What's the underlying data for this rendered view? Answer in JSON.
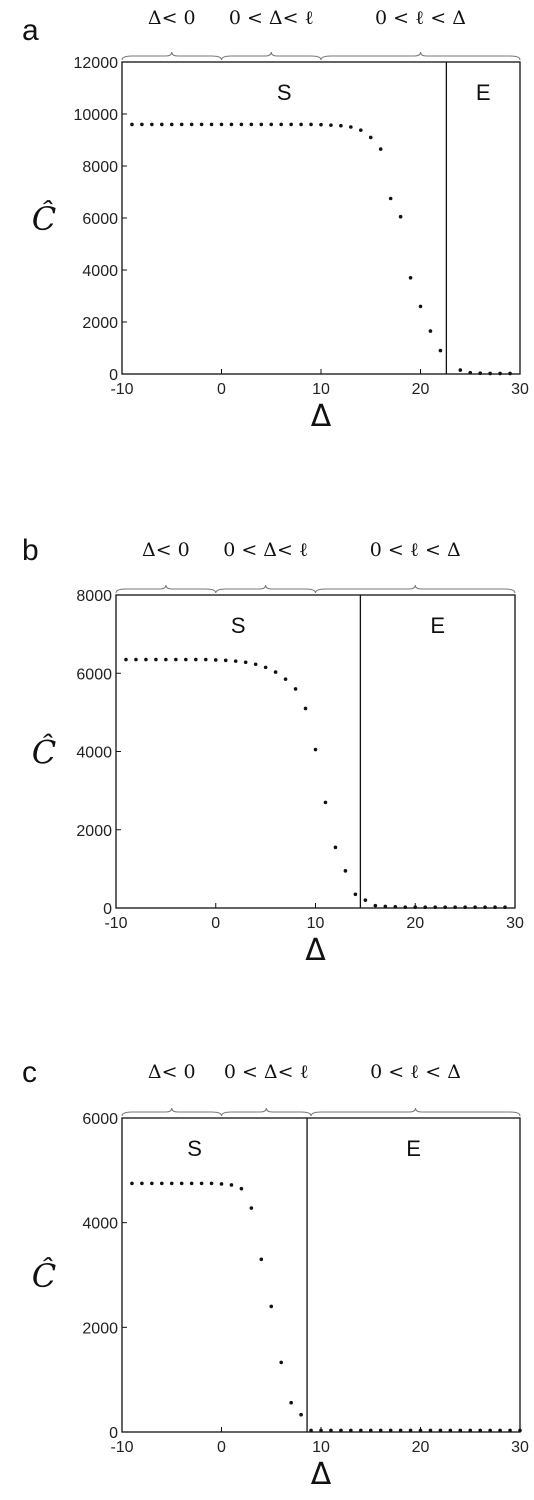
{
  "chart_data": [
    {
      "type": "scatter",
      "panel_label": "a",
      "xlabel": "Δ",
      "ylabel": "Ĉ",
      "xlim": [
        -10,
        30
      ],
      "ylim": [
        0,
        12000
      ],
      "xticks": [
        "-10",
        "0",
        "10",
        "20",
        "30"
      ],
      "yticks": [
        "0",
        "2000",
        "4000",
        "6000",
        "8000",
        "10000",
        "12000"
      ],
      "regime_labels": [
        "Δ< 0",
        "0 < Δ< ℓ",
        "0 < ℓ < Δ"
      ],
      "regime_bounds": [
        -10,
        0,
        10,
        30
      ],
      "regions": [
        "S",
        "E"
      ],
      "boundary_x": 22.6,
      "x": [
        -9,
        -8,
        -7,
        -6,
        -5,
        -4,
        -3,
        -2,
        -1,
        0,
        1,
        2,
        3,
        4,
        5,
        6,
        7,
        8,
        9,
        10,
        11,
        12,
        13,
        14,
        15,
        16,
        17,
        18,
        19,
        20,
        21,
        22,
        24,
        25,
        26,
        27,
        28,
        29
      ],
      "y": [
        9600,
        9600,
        9600,
        9600,
        9600,
        9600,
        9600,
        9600,
        9600,
        9600,
        9600,
        9600,
        9600,
        9600,
        9600,
        9600,
        9600,
        9600,
        9600,
        9590,
        9570,
        9550,
        9500,
        9380,
        9100,
        8650,
        6750,
        6050,
        3700,
        2600,
        1650,
        900,
        150,
        50,
        30,
        20,
        20,
        20
      ]
    },
    {
      "type": "scatter",
      "panel_label": "b",
      "xlabel": "Δ",
      "ylabel": "Ĉ",
      "xlim": [
        -10,
        30
      ],
      "ylim": [
        0,
        8000
      ],
      "xticks": [
        "-10",
        "0",
        "10",
        "20",
        "30"
      ],
      "yticks": [
        "0",
        "2000",
        "4000",
        "6000",
        "8000"
      ],
      "regime_labels": [
        "Δ< 0",
        "0 < Δ< ℓ",
        "0 < ℓ < Δ"
      ],
      "regime_bounds": [
        -10,
        0,
        10,
        30
      ],
      "regions": [
        "S",
        "E"
      ],
      "boundary_x": 14.5,
      "x": [
        -9,
        -8,
        -7,
        -6,
        -5,
        -4,
        -3,
        -2,
        -1,
        0,
        1,
        2,
        3,
        4,
        5,
        6,
        7,
        8,
        9,
        10,
        11,
        12,
        13,
        14,
        15,
        16,
        17,
        18,
        19,
        20,
        21,
        22,
        23,
        24,
        25,
        26,
        27,
        28,
        29
      ],
      "y": [
        6350,
        6350,
        6350,
        6350,
        6350,
        6350,
        6350,
        6350,
        6350,
        6340,
        6330,
        6310,
        6280,
        6230,
        6150,
        6030,
        5850,
        5600,
        5100,
        4050,
        2700,
        1550,
        950,
        350,
        200,
        60,
        40,
        30,
        20,
        20,
        20,
        20,
        20,
        20,
        20,
        20,
        20,
        20,
        20
      ]
    },
    {
      "type": "scatter",
      "panel_label": "c",
      "xlabel": "Δ",
      "ylabel": "Ĉ",
      "xlim": [
        -10,
        30
      ],
      "ylim": [
        0,
        6000
      ],
      "xticks": [
        "-10",
        "0",
        "10",
        "20",
        "30"
      ],
      "yticks": [
        "0",
        "2000",
        "4000",
        "6000"
      ],
      "regime_labels": [
        "Δ< 0",
        "0 < Δ< ℓ",
        "0 < ℓ < Δ"
      ],
      "regime_bounds": [
        -10,
        0,
        9,
        30
      ],
      "regions": [
        "S",
        "E"
      ],
      "boundary_x": 8.6,
      "x": [
        -9,
        -8,
        -7,
        -6,
        -5,
        -4,
        -3,
        -2,
        -1,
        0,
        1,
        2,
        3,
        4,
        5,
        6,
        7,
        8,
        9,
        10,
        11,
        12,
        13,
        14,
        15,
        16,
        17,
        18,
        19,
        20,
        21,
        22,
        23,
        24,
        25,
        26,
        27,
        28,
        29,
        30
      ],
      "y": [
        4750,
        4750,
        4750,
        4750,
        4750,
        4750,
        4750,
        4750,
        4750,
        4740,
        4720,
        4650,
        4280,
        3300,
        2400,
        1330,
        560,
        330,
        30,
        30,
        30,
        30,
        30,
        30,
        30,
        30,
        30,
        30,
        30,
        30,
        30,
        30,
        30,
        30,
        30,
        30,
        30,
        30,
        30,
        30
      ]
    }
  ]
}
